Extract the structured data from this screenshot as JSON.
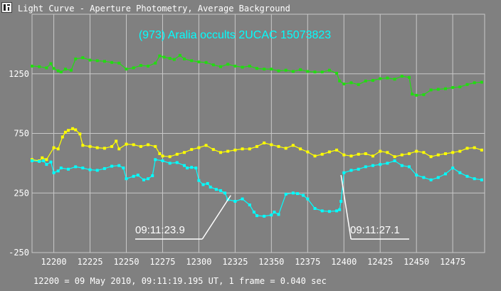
{
  "window": {
    "title": "Light Curve - Aperture Photometry, Average Background"
  },
  "footer": {
    "text": "12200 = 09 May 2010, 09:11:19.195 UT, 1 frame = 0.040 sec"
  },
  "colors": {
    "background": "#808080",
    "grid": "#c8c8c8",
    "text": "#ffffff",
    "green": "#22dd11",
    "yellow": "#ffff00",
    "cyan": "#00ffff",
    "annotation": "#ffffff"
  },
  "chart_data": {
    "type": "line",
    "title": "(973) Aralia occults 2UCAC 15073823",
    "xlim": [
      12185,
      12497
    ],
    "ylim": [
      -250,
      1750
    ],
    "xticks": [
      12200,
      12225,
      12250,
      12275,
      12300,
      12325,
      12350,
      12375,
      12400,
      12425,
      12450,
      12475
    ],
    "yticks": [
      -250,
      250,
      750,
      1250
    ],
    "grid": true,
    "series": [
      {
        "color": "#22dd11",
        "marker": "square",
        "x": [
          12185,
          12190,
          12195,
          12198,
          12200,
          12203,
          12205,
          12208,
          12212,
          12215,
          12220,
          12225,
          12230,
          12235,
          12240,
          12245,
          12250,
          12255,
          12260,
          12265,
          12270,
          12273,
          12276,
          12280,
          12283,
          12287,
          12290,
          12295,
          12300,
          12305,
          12310,
          12315,
          12320,
          12325,
          12330,
          12335,
          12340,
          12345,
          12350,
          12355,
          12360,
          12365,
          12370,
          12375,
          12380,
          12385,
          12390,
          12395,
          12397,
          12400,
          12405,
          12410,
          12415,
          12420,
          12425,
          12430,
          12435,
          12440,
          12445,
          12447,
          12450,
          12455,
          12460,
          12465,
          12470,
          12475,
          12480,
          12485,
          12490,
          12495
        ],
        "y": [
          1315,
          1310,
          1300,
          1335,
          1295,
          1275,
          1265,
          1290,
          1280,
          1375,
          1385,
          1365,
          1360,
          1355,
          1345,
          1340,
          1290,
          1300,
          1320,
          1315,
          1340,
          1400,
          1390,
          1380,
          1370,
          1405,
          1375,
          1360,
          1350,
          1345,
          1325,
          1310,
          1330,
          1315,
          1305,
          1315,
          1295,
          1290,
          1290,
          1275,
          1280,
          1270,
          1285,
          1270,
          1265,
          1265,
          1280,
          1255,
          1190,
          1165,
          1175,
          1160,
          1190,
          1195,
          1210,
          1215,
          1205,
          1230,
          1220,
          1080,
          1070,
          1075,
          1115,
          1120,
          1125,
          1135,
          1140,
          1160,
          1175,
          1180
        ]
      },
      {
        "color": "#ffff00",
        "marker": "square",
        "x": [
          12185,
          12190,
          12192,
          12195,
          12200,
          12203,
          12206,
          12208,
          12210,
          12213,
          12215,
          12218,
          12220,
          12225,
          12230,
          12235,
          12240,
          12243,
          12245,
          12250,
          12255,
          12260,
          12265,
          12270,
          12273,
          12275,
          12280,
          12285,
          12290,
          12295,
          12300,
          12305,
          12310,
          12315,
          12320,
          12325,
          12330,
          12335,
          12340,
          12345,
          12350,
          12355,
          12360,
          12365,
          12370,
          12375,
          12380,
          12385,
          12390,
          12395,
          12400,
          12405,
          12410,
          12415,
          12420,
          12425,
          12430,
          12435,
          12440,
          12445,
          12450,
          12455,
          12460,
          12465,
          12470,
          12475,
          12480,
          12485,
          12490,
          12495
        ],
        "y": [
          530,
          520,
          545,
          530,
          630,
          620,
          720,
          760,
          775,
          790,
          780,
          745,
          650,
          640,
          630,
          625,
          640,
          685,
          620,
          660,
          655,
          640,
          655,
          640,
          580,
          560,
          555,
          575,
          590,
          615,
          630,
          650,
          615,
          590,
          600,
          610,
          620,
          620,
          640,
          670,
          655,
          640,
          625,
          650,
          620,
          595,
          560,
          575,
          595,
          610,
          570,
          560,
          575,
          580,
          560,
          600,
          590,
          555,
          570,
          580,
          600,
          590,
          555,
          570,
          580,
          590,
          600,
          625,
          630,
          610
        ]
      },
      {
        "color": "#00ffff",
        "marker": "square",
        "x": [
          12185,
          12190,
          12193,
          12195,
          12198,
          12200,
          12203,
          12205,
          12210,
          12215,
          12220,
          12225,
          12230,
          12235,
          12240,
          12245,
          12248,
          12250,
          12255,
          12258,
          12262,
          12265,
          12268,
          12270,
          12275,
          12280,
          12285,
          12290,
          12292,
          12295,
          12298,
          12300,
          12303,
          12306,
          12308,
          12312,
          12315,
          12318,
          12320,
          12325,
          12330,
          12335,
          12338,
          12340,
          12345,
          12350,
          12352,
          12355,
          12360,
          12365,
          12368,
          12372,
          12375,
          12380,
          12385,
          12390,
          12395,
          12397,
          12398,
          12400,
          12405,
          12410,
          12415,
          12420,
          12425,
          12430,
          12435,
          12440,
          12445,
          12450,
          12455,
          12460,
          12465,
          12470,
          12475,
          12480,
          12485,
          12490,
          12495
        ],
        "y": [
          520,
          515,
          520,
          490,
          510,
          420,
          435,
          460,
          450,
          470,
          460,
          445,
          440,
          455,
          475,
          480,
          460,
          370,
          390,
          400,
          360,
          370,
          395,
          530,
          520,
          500,
          505,
          480,
          460,
          465,
          460,
          355,
          320,
          330,
          300,
          280,
          270,
          250,
          195,
          180,
          200,
          150,
          90,
          60,
          55,
          65,
          90,
          70,
          240,
          250,
          245,
          230,
          200,
          120,
          100,
          95,
          100,
          110,
          180,
          420,
          440,
          450,
          470,
          480,
          490,
          500,
          520,
          480,
          470,
          400,
          380,
          360,
          380,
          410,
          460,
          420,
          390,
          370,
          360
        ]
      }
    ],
    "annotations": [
      {
        "label": "09:11:23.9",
        "x": 12322,
        "y": 230,
        "anchor": "left"
      },
      {
        "label": "09:11:27.1",
        "x": 12398,
        "y": 400,
        "anchor": "right"
      }
    ]
  }
}
